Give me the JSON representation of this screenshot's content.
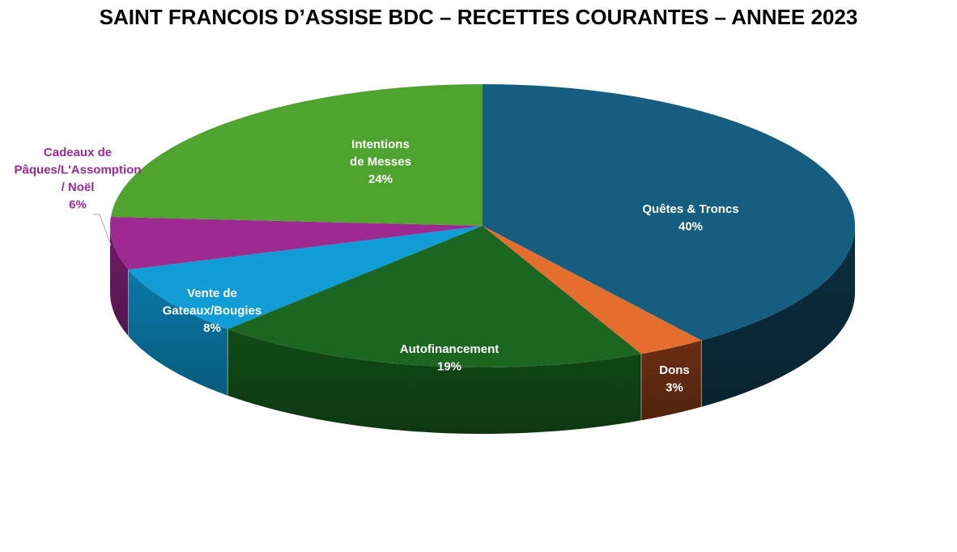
{
  "chart_data": {
    "type": "pie",
    "title": "SAINT FRANCOIS D’ASSISE BDC – RECETTES COURANTES – ANNEE 2023",
    "style": "3d",
    "series": [
      {
        "label_lines": [
          "Quêtes & Troncs"
        ],
        "pct_label": "40%",
        "value": 40,
        "color": "#165E80",
        "side_color": "#0B2F40",
        "label_color": "#ffffff"
      },
      {
        "label_lines": [
          "Dons"
        ],
        "pct_label": "3%",
        "value": 3,
        "color": "#E46E2E",
        "side_color": "#6A2E14",
        "label_color": "#ffffff"
      },
      {
        "label_lines": [
          "Autofinancement"
        ],
        "pct_label": "19%",
        "value": 19,
        "color": "#1B6620",
        "side_color": "#124A16",
        "label_color": "#ffffff"
      },
      {
        "label_lines": [
          "Vente de",
          "Gateaux/Bougies"
        ],
        "pct_label": "8%",
        "value": 8,
        "color": "#119CD6",
        "side_color": "#0A79A8",
        "label_color": "#ffffff"
      },
      {
        "label_lines": [
          "Cadeaux de",
          "Pâques/L'Assomption",
          "/ Noël"
        ],
        "pct_label": "6%",
        "value": 6,
        "color": "#9C2A92",
        "side_color": "#6E1C66",
        "label_color": "#9C2A92"
      },
      {
        "label_lines": [
          "Intentions",
          "de Messes"
        ],
        "pct_label": "24%",
        "value": 24,
        "color": "#4EA42F",
        "side_color": "#2F6A1C",
        "label_color": "#ffffff"
      }
    ]
  }
}
